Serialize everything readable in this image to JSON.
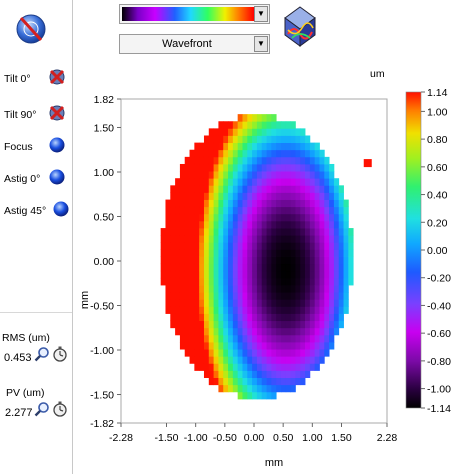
{
  "toolbar": {
    "colormap_combo": {
      "selected": "rainbow-colormap"
    },
    "mode_combo": {
      "selected": "Wavefront"
    },
    "view3d_icon": "3d-view-cube-icon",
    "aberration_icon": "aberration-target-icon"
  },
  "terms": [
    {
      "label": "Tilt 0°",
      "icon": "tilt-removed-x-icon",
      "state": "removed"
    },
    {
      "label": "Tilt 90°",
      "icon": "tilt-removed-x-icon",
      "state": "removed"
    },
    {
      "label": "Focus",
      "icon": "blue-sphere-icon",
      "state": "included"
    },
    {
      "label": "Astig 0°",
      "icon": "blue-sphere-icon",
      "state": "included"
    },
    {
      "label": "Astig 45°",
      "icon": "blue-sphere-icon",
      "state": "included"
    }
  ],
  "rms": {
    "label": "RMS (um)",
    "value": "0.453"
  },
  "pv": {
    "label": "PV (um)",
    "value": "2.277"
  },
  "chart_data": {
    "type": "heatmap",
    "xlabel": "mm",
    "ylabel": "mm",
    "unit_label": "um",
    "x_ticks": [
      "-2.28",
      "-1.50",
      "-1.00",
      "-0.50",
      "0.00",
      "0.50",
      "1.00",
      "1.50",
      "2.28"
    ],
    "y_ticks": [
      "1.82",
      "1.50",
      "1.00",
      "0.50",
      "0.00",
      "-0.50",
      "-1.00",
      "-1.50",
      "-1.82"
    ],
    "xlim": [
      -2.28,
      2.28
    ],
    "ylim": [
      -1.82,
      1.82
    ],
    "colorbar_ticks": [
      "1.14",
      "1.00",
      "0.80",
      "0.60",
      "0.40",
      "0.20",
      "0.00",
      "-0.20",
      "-0.40",
      "-0.60",
      "-0.80",
      "-1.00",
      "-1.14"
    ],
    "colorbar_range": [
      -1.14,
      1.14
    ],
    "aperture": {
      "center_x_mm": 0.05,
      "center_y_mm": 0.05,
      "radius_x_mm": 1.65,
      "radius_y_mm": 1.6
    },
    "minimum": {
      "x_mm": 0.55,
      "y_mm": -0.1,
      "value_um": -1.14
    },
    "maximum": {
      "x_mm": 1.95,
      "y_mm": 1.1,
      "value_um": 1.14
    },
    "grid_cells": 40
  }
}
